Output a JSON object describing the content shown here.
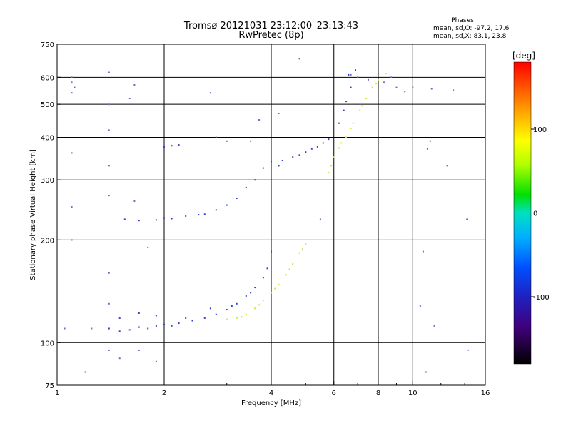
{
  "chart_data": {
    "type": "scatter",
    "title": "Tromsø 20121031 23:12:00–23:13:43",
    "subtitle": "RwPretec (8p)",
    "stats": {
      "heading": "Phases",
      "o_line": "mean, sd,O:  -97.2, 17.6",
      "x_line": "mean, sd,X:  83.1, 23.8"
    },
    "xlabel": "Frequency [MHz]",
    "ylabel": "Stationary phase Virtual Height [km]",
    "x_scale": "log",
    "y_scale": "log",
    "xlim": [
      1,
      16
    ],
    "ylim": [
      75,
      750
    ],
    "x_ticks": [
      1,
      2,
      4,
      6,
      8,
      10,
      16
    ],
    "x_tick_labels": [
      "1",
      "2",
      "4",
      "6",
      "8",
      "10",
      "16"
    ],
    "y_ticks": [
      75,
      100,
      200,
      300,
      400,
      500,
      600,
      750
    ],
    "y_tick_labels": [
      "75",
      "100",
      "200",
      "300",
      "400",
      "500",
      "600",
      "750"
    ],
    "grid_x": [
      2,
      4,
      6,
      8,
      10
    ],
    "grid_y": [
      100,
      200,
      300,
      400,
      500,
      600
    ],
    "grid": true,
    "colorbar": {
      "label": "[deg]",
      "min": -180,
      "max": 180,
      "ticks": [
        100,
        0,
        -100
      ],
      "tick_labels": [
        "100",
        "0",
        "-100"
      ],
      "colormap": "rainbow-black-to-red"
    },
    "series": [
      {
        "mode": "O",
        "phase_deg": -97,
        "color": "#3040d0",
        "points": [
          [
            1.4,
            110
          ],
          [
            1.5,
            108
          ],
          [
            1.6,
            109
          ],
          [
            1.7,
            111
          ],
          [
            1.8,
            110
          ],
          [
            1.9,
            112
          ],
          [
            2.0,
            113
          ],
          [
            2.1,
            112
          ],
          [
            2.2,
            114
          ],
          [
            2.4,
            116
          ],
          [
            2.6,
            118
          ],
          [
            2.8,
            121
          ],
          [
            3.0,
            125
          ],
          [
            3.2,
            130
          ],
          [
            3.4,
            137
          ],
          [
            3.6,
            145
          ],
          [
            3.8,
            155
          ],
          [
            3.9,
            165
          ],
          [
            4.0,
            185
          ],
          [
            1.5,
            118
          ],
          [
            1.7,
            122
          ],
          [
            1.9,
            120
          ],
          [
            2.3,
            118
          ],
          [
            2.7,
            126
          ],
          [
            3.1,
            128
          ],
          [
            3.5,
            140
          ],
          [
            1.55,
            230
          ],
          [
            1.7,
            228
          ],
          [
            1.9,
            229
          ],
          [
            2.0,
            232
          ],
          [
            2.1,
            231
          ],
          [
            2.3,
            235
          ],
          [
            2.5,
            237
          ],
          [
            2.6,
            238
          ],
          [
            2.8,
            245
          ],
          [
            3.0,
            253
          ],
          [
            3.2,
            265
          ],
          [
            3.4,
            285
          ],
          [
            3.6,
            300
          ],
          [
            3.8,
            325
          ],
          [
            4.0,
            340
          ],
          [
            4.3,
            342
          ],
          [
            4.6,
            350
          ],
          [
            5.0,
            362
          ],
          [
            5.4,
            375
          ],
          [
            5.8,
            395
          ],
          [
            6.2,
            440
          ],
          [
            6.5,
            510
          ],
          [
            6.7,
            560
          ],
          [
            6.9,
            630
          ],
          [
            2.0,
            375
          ],
          [
            2.1,
            378
          ],
          [
            2.2,
            380
          ],
          [
            4.2,
            330
          ],
          [
            4.8,
            355
          ],
          [
            5.2,
            370
          ],
          [
            5.6,
            385
          ],
          [
            6.4,
            480
          ],
          [
            6.6,
            610
          ]
        ]
      },
      {
        "mode": "X",
        "phase_deg": 83,
        "color": "#c0ee30",
        "points": [
          [
            3.0,
            117
          ],
          [
            3.2,
            118
          ],
          [
            3.4,
            121
          ],
          [
            3.6,
            126
          ],
          [
            3.8,
            133
          ],
          [
            4.0,
            140
          ],
          [
            4.2,
            148
          ],
          [
            4.4,
            158
          ],
          [
            4.6,
            170
          ],
          [
            4.8,
            183
          ],
          [
            5.0,
            195
          ],
          [
            3.3,
            119
          ],
          [
            3.7,
            129
          ],
          [
            4.1,
            144
          ],
          [
            4.5,
            164
          ],
          [
            4.9,
            188
          ],
          [
            5.8,
            315
          ],
          [
            6.0,
            350
          ],
          [
            6.2,
            372
          ],
          [
            6.5,
            400
          ],
          [
            6.8,
            440
          ],
          [
            7.1,
            480
          ],
          [
            7.4,
            520
          ],
          [
            7.7,
            560
          ],
          [
            8.0,
            590
          ],
          [
            8.4,
            615
          ],
          [
            5.9,
            330
          ],
          [
            6.3,
            385
          ],
          [
            6.7,
            425
          ],
          [
            7.2,
            495
          ],
          [
            7.9,
            575
          ]
        ]
      },
      {
        "mode": "scattered",
        "color": "#6a6ad0",
        "points": [
          [
            1.1,
            540
          ],
          [
            1.1,
            580
          ],
          [
            1.1,
            600
          ],
          [
            1.12,
            560
          ],
          [
            1.05,
            110
          ],
          [
            1.1,
            360
          ],
          [
            1.1,
            250
          ],
          [
            1.1,
            200
          ],
          [
            1.2,
            82
          ],
          [
            1.25,
            110
          ],
          [
            1.4,
            620
          ],
          [
            1.4,
            500
          ],
          [
            1.4,
            420
          ],
          [
            1.4,
            330
          ],
          [
            1.4,
            270
          ],
          [
            1.4,
            160
          ],
          [
            1.4,
            130
          ],
          [
            1.4,
            95
          ],
          [
            1.5,
            90
          ],
          [
            1.6,
            520
          ],
          [
            1.65,
            570
          ],
          [
            1.65,
            260
          ],
          [
            1.7,
            95
          ],
          [
            1.8,
            190
          ],
          [
            1.9,
            88
          ],
          [
            2.0,
            98
          ],
          [
            2.7,
            540
          ],
          [
            2.8,
            400
          ],
          [
            3.0,
            390
          ],
          [
            3.5,
            390
          ],
          [
            3.7,
            450
          ],
          [
            4.2,
            470
          ],
          [
            4.8,
            680
          ],
          [
            5.5,
            230
          ],
          [
            6.7,
            610
          ],
          [
            7.0,
            600
          ],
          [
            7.5,
            590
          ],
          [
            8.3,
            580
          ],
          [
            8.7,
            600
          ],
          [
            9.0,
            560
          ],
          [
            9.5,
            545
          ],
          [
            10.0,
            560
          ],
          [
            10.7,
            185
          ],
          [
            10.9,
            82
          ],
          [
            10.5,
            128
          ],
          [
            11.0,
            370
          ],
          [
            11.2,
            390
          ],
          [
            11.3,
            555
          ],
          [
            12.5,
            330
          ],
          [
            13.0,
            550
          ],
          [
            14.2,
            230
          ],
          [
            14.3,
            95
          ],
          [
            11.5,
            112
          ]
        ]
      }
    ]
  }
}
